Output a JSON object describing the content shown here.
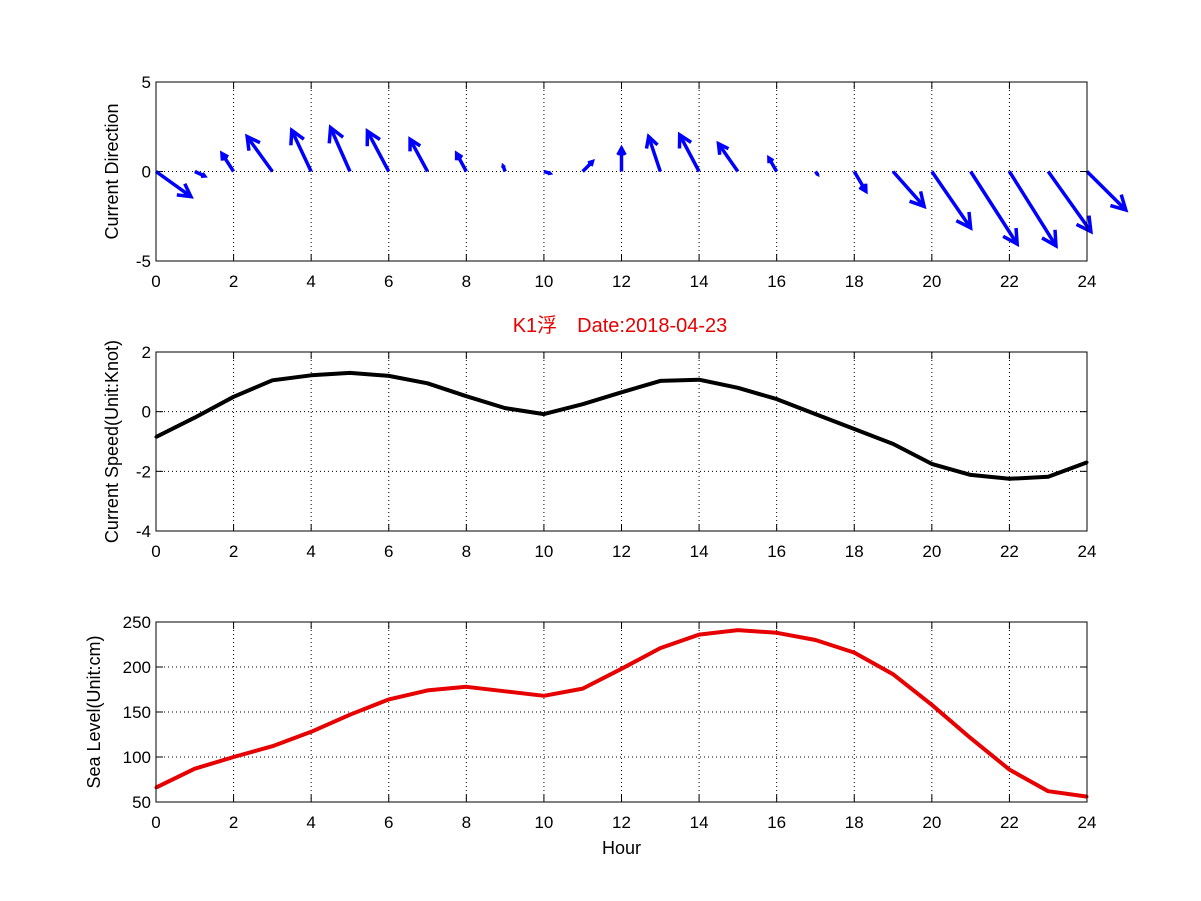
{
  "figure_title": "K1浮　Date:2018-04-23",
  "colors": {
    "direction": "#0000ff",
    "speed": "#000000",
    "sea_level": "#e60000",
    "title": "#e60000"
  },
  "chart_data": [
    {
      "type": "quiver",
      "ylabel": "Current Direction",
      "xlim": [
        0,
        24
      ],
      "ylim": [
        -5,
        5
      ],
      "xticks": [
        0,
        2,
        4,
        6,
        8,
        10,
        12,
        14,
        16,
        18,
        20,
        22,
        24
      ],
      "yticks": [
        -5,
        0,
        5
      ],
      "grid": true,
      "x": [
        0,
        1,
        2,
        3,
        4,
        5,
        6,
        7,
        8,
        9,
        10,
        11,
        12,
        13,
        14,
        15,
        16,
        17,
        18,
        19,
        20,
        21,
        22,
        23,
        24
      ],
      "u": [
        0.9,
        0.25,
        -0.3,
        -0.65,
        -0.5,
        -0.5,
        -0.55,
        -0.45,
        -0.25,
        -0.05,
        0.15,
        0.25,
        0.0,
        -0.3,
        -0.5,
        -0.5,
        -0.2,
        0.05,
        0.3,
        0.8,
        1.0,
        1.2,
        1.2,
        1.1,
        1.0
      ],
      "v": [
        -1.4,
        -0.25,
        1.0,
        1.95,
        2.3,
        2.45,
        2.25,
        1.8,
        1.0,
        0.3,
        -0.1,
        0.55,
        1.3,
        1.95,
        2.05,
        1.55,
        0.75,
        -0.15,
        -1.1,
        -1.95,
        -3.15,
        -4.05,
        -4.15,
        -3.35,
        -2.15
      ]
    },
    {
      "type": "line",
      "ylabel": "Current Speed(Unit:Knot)",
      "xlim": [
        0,
        24
      ],
      "ylim": [
        -4,
        2
      ],
      "xticks": [
        0,
        2,
        4,
        6,
        8,
        10,
        12,
        14,
        16,
        18,
        20,
        22,
        24
      ],
      "yticks": [
        -4,
        -2,
        0,
        2
      ],
      "grid": true,
      "x": [
        0,
        1,
        2,
        3,
        4,
        5,
        6,
        7,
        8,
        9,
        10,
        11,
        12,
        13,
        14,
        15,
        16,
        17,
        18,
        19,
        20,
        21,
        22,
        23,
        24
      ],
      "values": [
        -0.85,
        -0.2,
        0.5,
        1.05,
        1.22,
        1.3,
        1.2,
        0.95,
        0.52,
        0.12,
        -0.08,
        0.25,
        0.65,
        1.03,
        1.07,
        0.8,
        0.42,
        -0.08,
        -0.58,
        -1.08,
        -1.75,
        -2.12,
        -2.25,
        -2.18,
        -1.7
      ]
    },
    {
      "type": "line",
      "ylabel": "Sea Level(Unit:cm)",
      "xlabel": "Hour",
      "xlim": [
        0,
        24
      ],
      "ylim": [
        50,
        250
      ],
      "xticks": [
        0,
        2,
        4,
        6,
        8,
        10,
        12,
        14,
        16,
        18,
        20,
        22,
        24
      ],
      "yticks": [
        50,
        100,
        150,
        200,
        250
      ],
      "grid": true,
      "x": [
        0,
        1,
        2,
        3,
        4,
        5,
        6,
        7,
        8,
        9,
        10,
        11,
        12,
        13,
        14,
        15,
        16,
        17,
        18,
        19,
        20,
        21,
        22,
        23,
        24
      ],
      "values": [
        66,
        87,
        100,
        112,
        128,
        147,
        164,
        174,
        178,
        173,
        168,
        176,
        198,
        221,
        236,
        241,
        238,
        230,
        216,
        192,
        158,
        121,
        86,
        62,
        56
      ]
    }
  ]
}
